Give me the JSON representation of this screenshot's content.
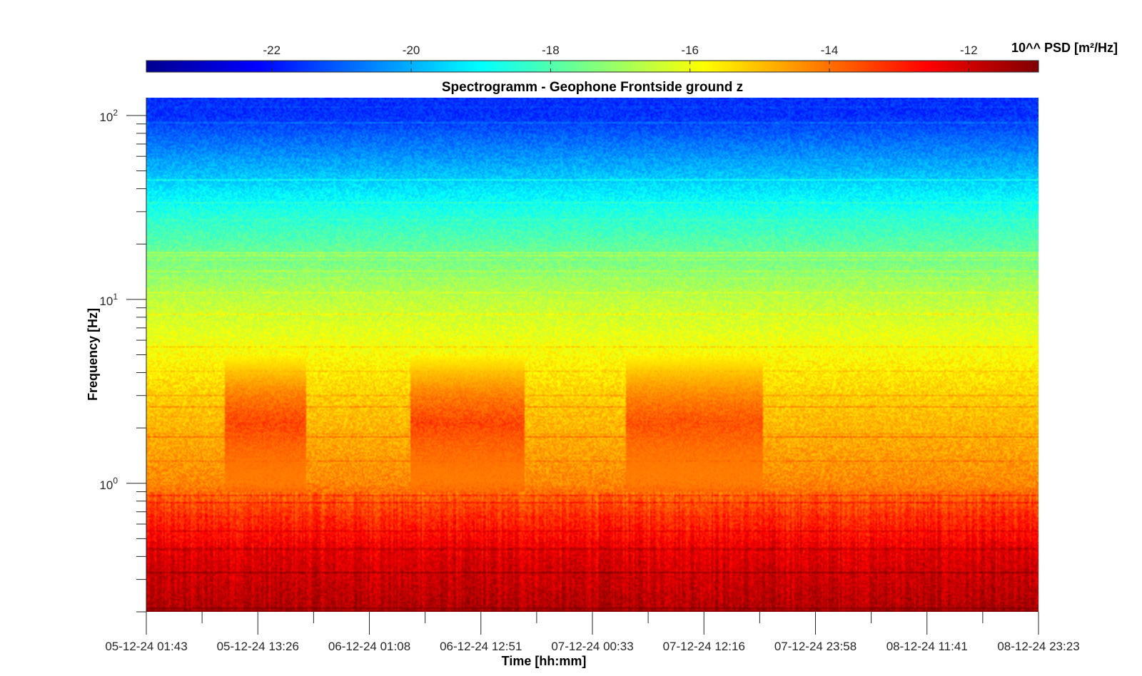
{
  "chart_data": {
    "type": "heatmap",
    "title": "Spectrogramm - Geophone Frontside ground z",
    "xlabel": "Time [hh:mm]",
    "ylabel": "Frequency [Hz]",
    "y_scale": "log",
    "ylim": [
      0.2,
      125
    ],
    "y_ticks": [
      {
        "value": 1,
        "base": "10",
        "exp": "0"
      },
      {
        "value": 10,
        "base": "10",
        "exp": "1"
      },
      {
        "value": 100,
        "base": "10",
        "exp": "2"
      }
    ],
    "x_tick_labels": [
      "05-12-24 01:43",
      "05-12-24 13:26",
      "06-12-24 01:08",
      "06-12-24 12:51",
      "07-12-24 00:33",
      "07-12-24 12:16",
      "07-12-24 23:58",
      "08-12-24 11:41",
      "08-12-24 23:23"
    ],
    "colorbar": {
      "label": "10^^ PSD [m²/Hz]",
      "range": [
        -23.8,
        -11
      ],
      "tick_labels": [
        "-22",
        "-20",
        "-18",
        "-16",
        "-14",
        "-12"
      ],
      "tick_values": [
        -22,
        -20,
        -18,
        -16,
        -14,
        -12
      ],
      "colormap": "jet",
      "orientation": "horizontal",
      "placement": "top"
    },
    "approx_psd_by_frequency": [
      {
        "freq": 0.2,
        "value": -11.6
      },
      {
        "freq": 0.4,
        "value": -12.2
      },
      {
        "freq": 0.7,
        "value": -13.3
      },
      {
        "freq": 1.0,
        "value": -14.3
      },
      {
        "freq": 3.0,
        "value": -15.2
      },
      {
        "freq": 10,
        "value": -16.6
      },
      {
        "freq": 30,
        "value": -18.6
      },
      {
        "freq": 100,
        "value": -21.6
      }
    ],
    "activity_periods": [
      {
        "start": "05-12-24 10:00",
        "end": "05-12-24 18:30",
        "freq_range": [
          0.9,
          5
        ],
        "value": -13.2
      },
      {
        "start": "06-12-24 05:30",
        "end": "06-12-24 17:30",
        "freq_range": [
          0.9,
          5
        ],
        "value": -13.2
      },
      {
        "start": "07-12-24 04:00",
        "end": "07-12-24 18:30",
        "freq_range": [
          0.9,
          5
        ],
        "value": -13.4
      }
    ]
  }
}
